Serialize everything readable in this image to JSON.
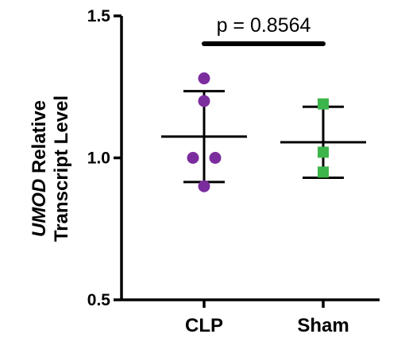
{
  "chart_data": {
    "type": "scatter",
    "ylabel_italic": "UMOD",
    "ylabel_rest": " Relative",
    "ylabel_line2": "Transcript Level",
    "ylim": [
      0.5,
      1.5
    ],
    "yticks": [
      0.5,
      1.0,
      1.5
    ],
    "ytick_labels": [
      "0.5",
      "1.0",
      "1.5"
    ],
    "categories": [
      "CLP",
      "Sham"
    ],
    "groups": [
      {
        "category": "CLP",
        "marker": "circle",
        "color": "#7b2d9e",
        "points": [
          1.28,
          1.2,
          1.0,
          1.0,
          0.9
        ],
        "mean": 1.075,
        "sd_upper": 1.235,
        "sd_lower": 0.915
      },
      {
        "category": "Sham",
        "marker": "square",
        "color": "#3cb54a",
        "points": [
          1.19,
          1.02,
          0.95
        ],
        "mean": 1.055,
        "sd_upper": 1.18,
        "sd_lower": 0.93
      }
    ],
    "annotation": {
      "text": "p = 0.8564",
      "between": [
        "CLP",
        "Sham"
      ]
    }
  }
}
